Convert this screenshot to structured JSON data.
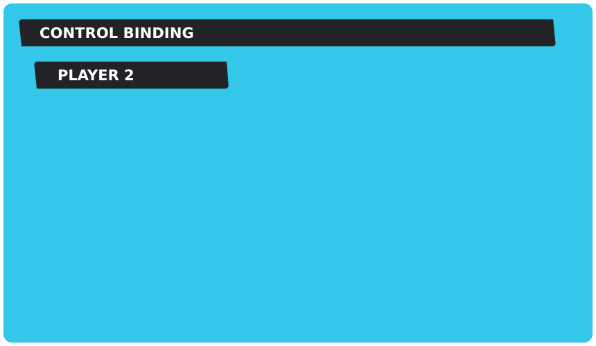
{
  "header": {
    "title": "CONTROL BINDING"
  },
  "section": {
    "player_label": "PLAYER 2"
  },
  "colors": {
    "panel_background": "#33c8ea",
    "banner_background": "#232226",
    "banner_text": "#ffffff"
  }
}
